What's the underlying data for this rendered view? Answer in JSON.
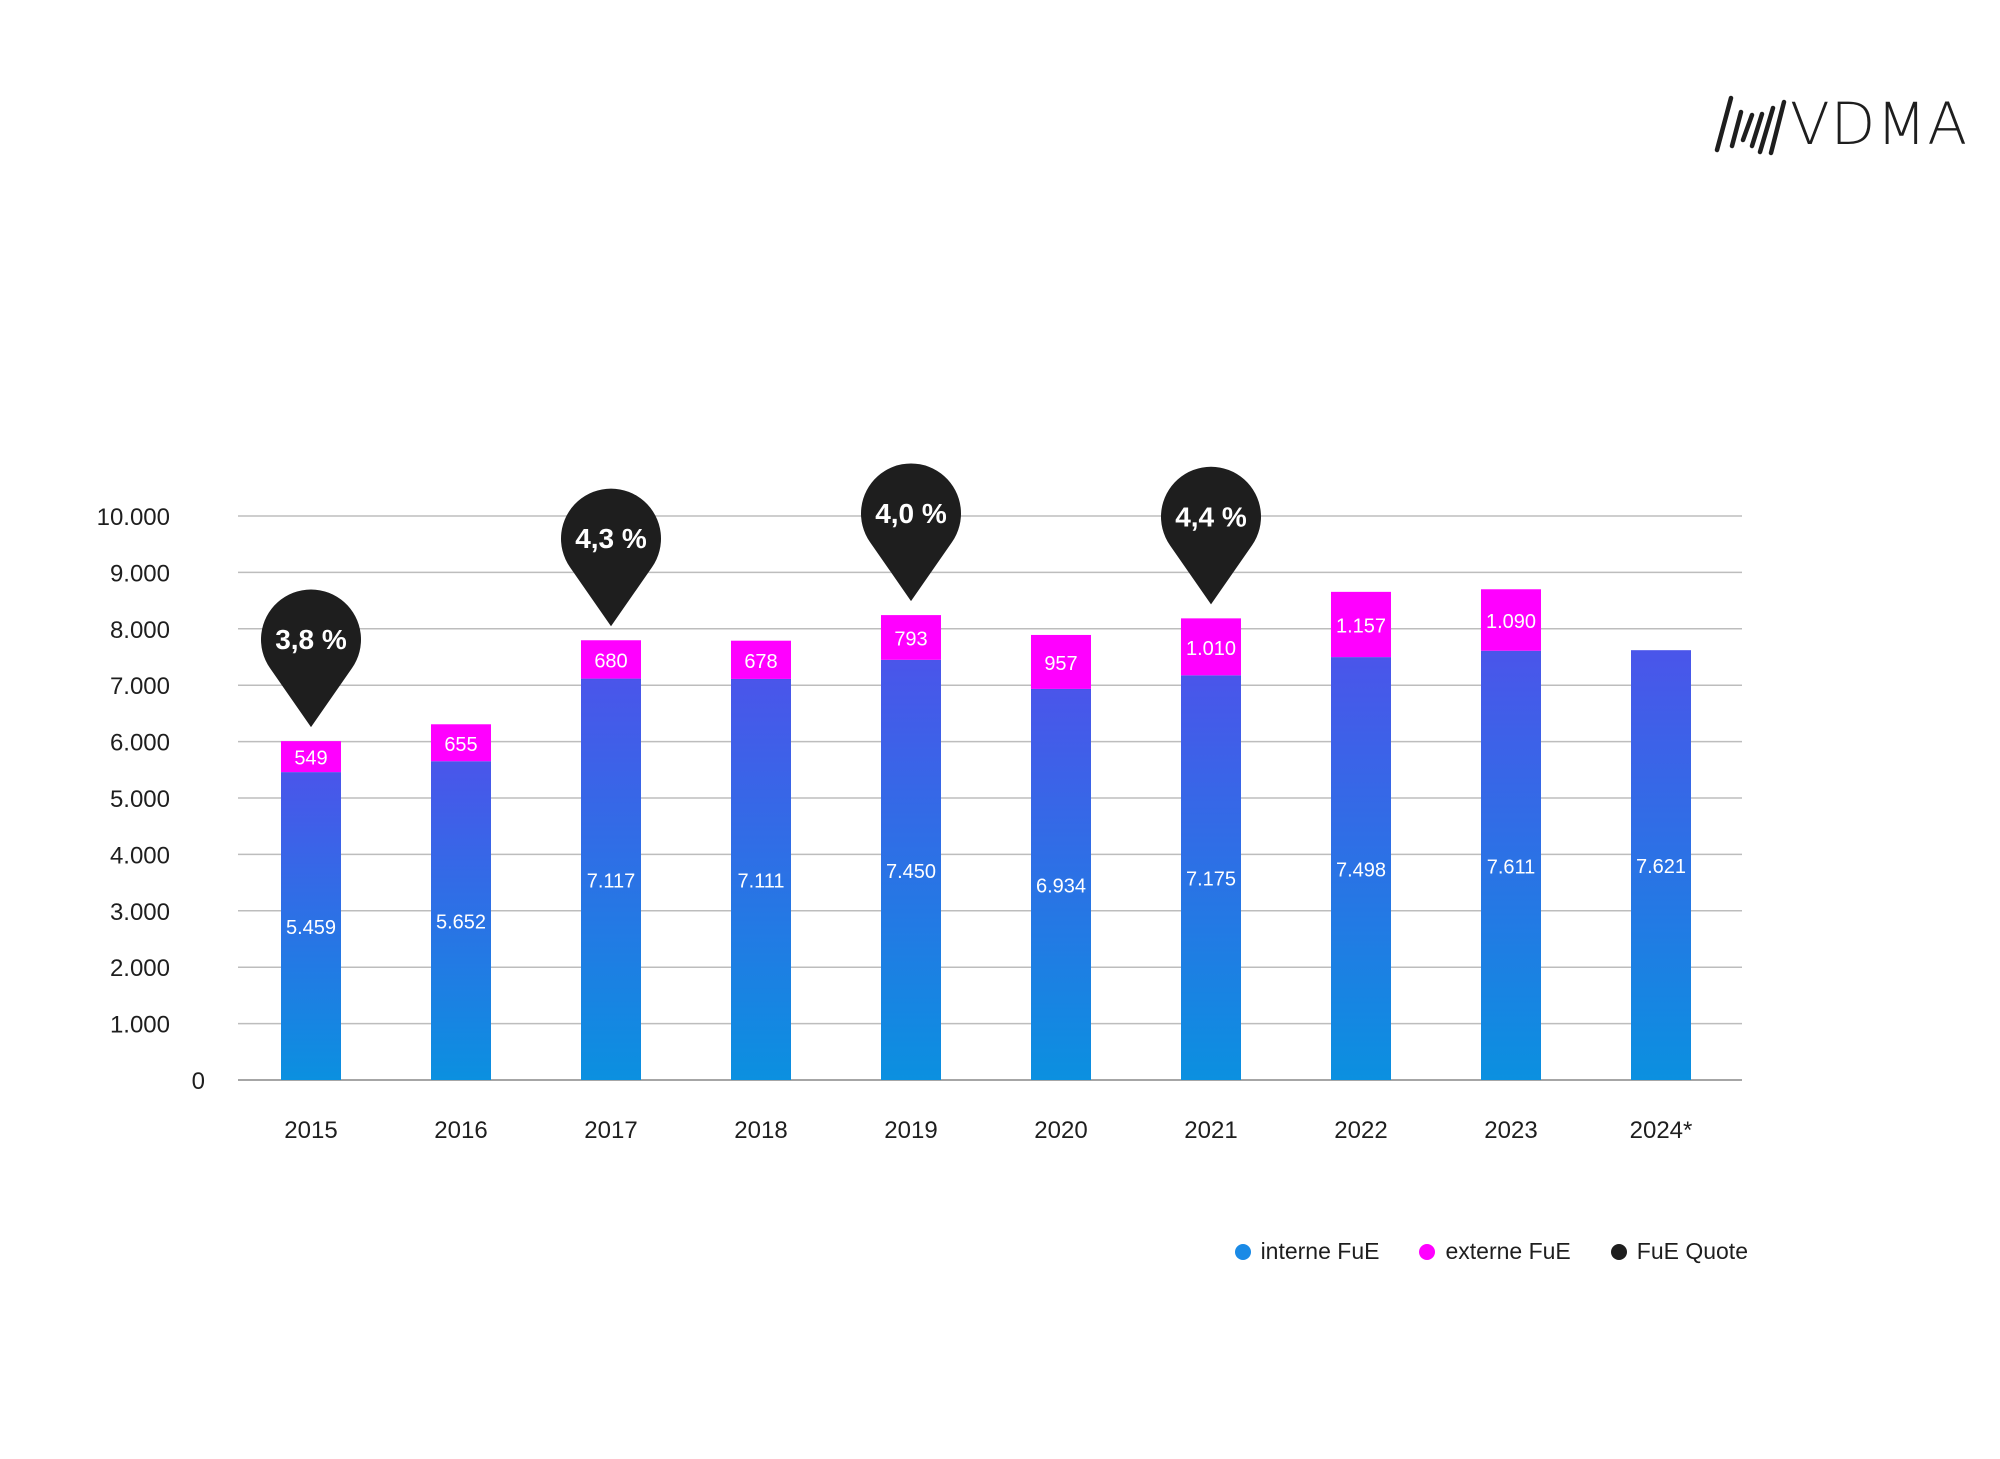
{
  "logo": {
    "text": "VDMA"
  },
  "colors": {
    "interne_top": "#4a55ea",
    "interne_bottom": "#0b90e0",
    "externe": "#ff00ff",
    "quote": "#1e1e1e",
    "grid": "#bdbdbd"
  },
  "chart_data": {
    "type": "bar",
    "stacked": true,
    "categories": [
      "2015",
      "2016",
      "2017",
      "2018",
      "2019",
      "2020",
      "2021",
      "2022",
      "2023",
      "2024*"
    ],
    "series": [
      {
        "name": "interne FuE",
        "values": [
          5459,
          5652,
          7117,
          7111,
          7450,
          6934,
          7175,
          7498,
          7611,
          7621
        ],
        "labels": [
          "5.459",
          "5.652",
          "7.117",
          "7.111",
          "7.450",
          "6.934",
          "7.175",
          "7.498",
          "7.611",
          "7.621"
        ]
      },
      {
        "name": "externe FuE",
        "values": [
          549,
          655,
          680,
          678,
          793,
          957,
          1010,
          1157,
          1090,
          null
        ],
        "labels": [
          "549",
          "655",
          "680",
          "678",
          "793",
          "957",
          "1.010",
          "1.157",
          "1.090",
          ""
        ]
      }
    ],
    "quote": {
      "name": "FuE Quote",
      "points": [
        {
          "category": "2015",
          "label": "3,8 %"
        },
        {
          "category": "2017",
          "label": "4,3 %"
        },
        {
          "category": "2019",
          "label": "4,0 %"
        },
        {
          "category": "2021",
          "label": "4,4 %"
        }
      ]
    },
    "ylim": [
      0,
      10000
    ],
    "yticks": [
      0,
      1000,
      2000,
      3000,
      4000,
      5000,
      6000,
      7000,
      8000,
      9000,
      10000
    ],
    "ytick_labels": [
      "0",
      "1.000",
      "2.000",
      "3.000",
      "4.000",
      "5.000",
      "6.000",
      "7.000",
      "8.000",
      "9.000",
      "10.000"
    ],
    "grid": true,
    "legend_position": "bottom-right"
  },
  "legend": [
    {
      "label": "interne FuE",
      "color": "#1a8ae6"
    },
    {
      "label": "externe FuE",
      "color": "#ff00ff"
    },
    {
      "label": "FuE Quote",
      "color": "#1e1e1e"
    }
  ]
}
